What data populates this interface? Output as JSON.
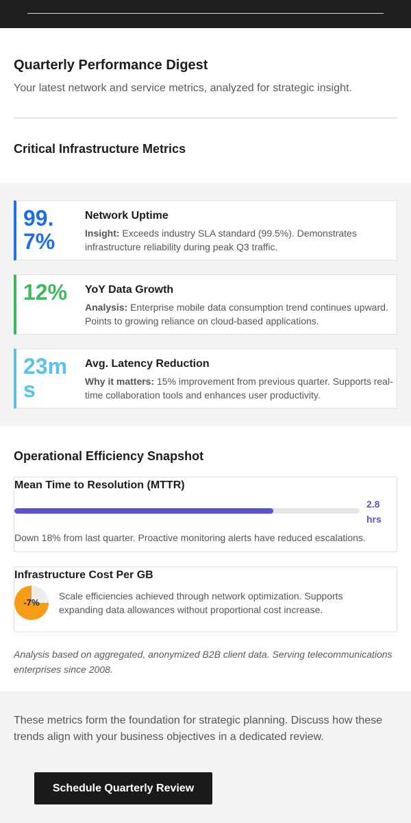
{
  "header": {
    "title": "Quarterly Performance Digest",
    "subtitle": "Your latest network and service metrics, analyzed for strategic insight."
  },
  "critical": {
    "title": "Critical Infrastructure Metrics",
    "metrics": [
      {
        "value": "99.7%",
        "title": "Network Uptime",
        "lead": "Insight:",
        "text": " Exceeds industry SLA standard (99.5%). Demonstrates infrastructure reliability during peak Q3 traffic.",
        "color": "#1f6fe0"
      },
      {
        "value": "12%",
        "title": "YoY Data Growth",
        "lead": "Analysis:",
        "text": " Enterprise mobile data consumption trend continues upward. Points to growing reliance on cloud-based applications.",
        "color": "#3cb95c"
      },
      {
        "value": "23ms",
        "title": "Avg. Latency Reduction",
        "lead": "Why it matters:",
        "text": " 15% improvement from previous quarter. Supports real-time collaboration tools and enhances user productivity.",
        "color": "#5bc0eb"
      }
    ]
  },
  "efficiency": {
    "title": "Operational Efficiency Snapshot",
    "mttr": {
      "title": "Mean Time to Resolution (MTTR)",
      "value": "2.8 hrs",
      "fill_fraction": 0.75,
      "description": "Down 18% from last quarter. Proactive monitoring alerts have reduced escalations.",
      "color": "#5b53c9"
    },
    "cost": {
      "title": "Infrastructure Cost Per GB",
      "value": "-7%",
      "pie_fraction": 0.75,
      "description": "Scale efficiencies achieved through network optimization. Supports expanding data allowances without proportional cost increase.",
      "color": "#f79c14"
    }
  },
  "footnote": "Analysis based on aggregated, anonymized B2B client data. Serving telecommunications enterprises since 2008.",
  "cta": {
    "text": "These metrics form the foundation for strategic planning. Discuss how these trends align with your business objectives in a dedicated review.",
    "button_label": "Schedule Quarterly Review"
  }
}
